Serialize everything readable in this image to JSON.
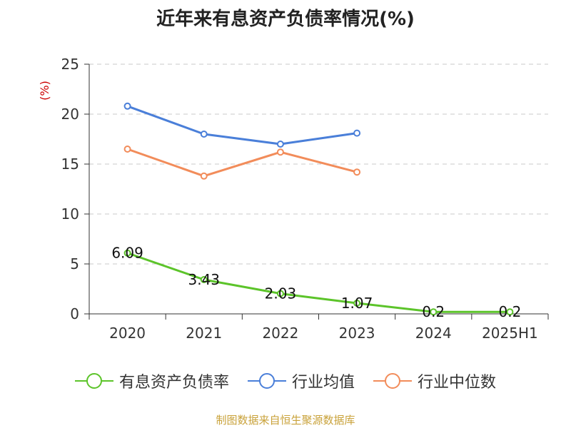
{
  "chart_data": {
    "type": "line",
    "title": "近年来有息资产负债率情况(%)",
    "ylabel": "(%)",
    "categories": [
      "2020",
      "2021",
      "2022",
      "2023",
      "2024",
      "2025H1"
    ],
    "ylim": [
      0,
      25
    ],
    "yticks": [
      0,
      5,
      10,
      15,
      20,
      25
    ],
    "grid": true,
    "legend_position": "bottom",
    "series": [
      {
        "name": "有息资产负债率",
        "color": "#5cc42a",
        "values": [
          6.09,
          3.43,
          2.03,
          1.07,
          0.2,
          0.2
        ],
        "labels": [
          "6.09",
          "3.43",
          "2.03",
          "1.07",
          "0.2",
          "0.2"
        ]
      },
      {
        "name": "行业均值",
        "color": "#4a7fd9",
        "values": [
          20.8,
          18.0,
          17.0,
          18.1,
          null,
          null
        ]
      },
      {
        "name": "行业中位数",
        "color": "#f28c5a",
        "values": [
          16.5,
          13.8,
          16.2,
          14.2,
          null,
          null
        ]
      }
    ]
  },
  "source": "制图数据来自恒生聚源数据库"
}
